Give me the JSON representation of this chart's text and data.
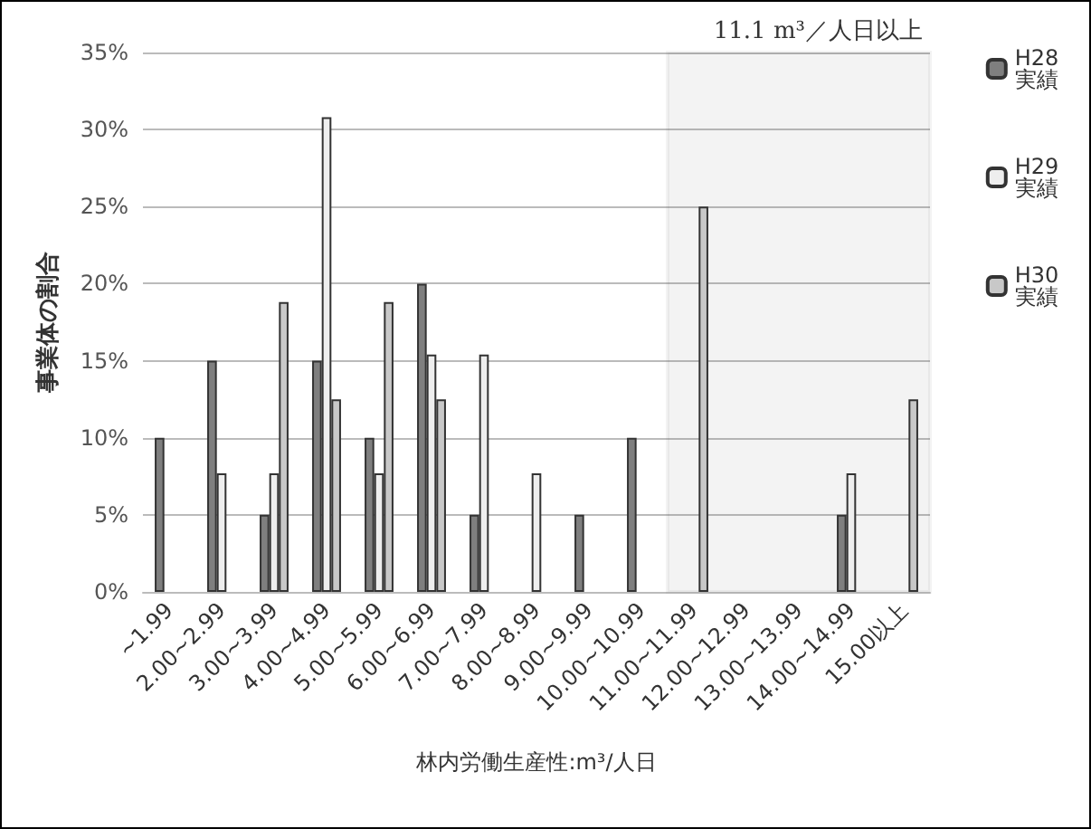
{
  "chart_data": {
    "type": "bar",
    "xlabel": "林内労働生産性:m³/人日",
    "ylabel": "事業体の割合",
    "categories": [
      "~1.99",
      "2.00~2.99",
      "3.00~3.99",
      "4.00~4.99",
      "5.00~5.99",
      "6.00~6.99",
      "7.00~7.99",
      "8.00~8.99",
      "9.00~9.99",
      "10.00~10.99",
      "11.00~11.99",
      "12.00~12.99",
      "13.00~13.99",
      "14.00~14.99",
      "15.00以上"
    ],
    "series": [
      {
        "name": "H28 実績",
        "color": "#7f7f7f",
        "values": [
          10,
          15,
          5,
          15,
          10,
          20,
          5,
          null,
          5,
          10,
          null,
          null,
          null,
          5,
          null
        ]
      },
      {
        "name": "H29 実績",
        "color": "#eeeeee",
        "values": [
          null,
          7.7,
          7.7,
          30.8,
          7.7,
          15.4,
          15.4,
          7.7,
          null,
          null,
          null,
          null,
          null,
          7.7,
          null
        ]
      },
      {
        "name": "H30 実績",
        "color": "#c8c8c8",
        "values": [
          null,
          null,
          18.8,
          12.5,
          18.8,
          12.5,
          null,
          null,
          null,
          null,
          25,
          null,
          null,
          null,
          12.5
        ]
      }
    ],
    "ylim": [
      0,
      35
    ],
    "yticks": [
      {
        "value": 0,
        "label": "0%"
      },
      {
        "value": 5,
        "label": "5%"
      },
      {
        "value": 10,
        "label": "10%"
      },
      {
        "value": 15,
        "label": "15%"
      },
      {
        "value": 20,
        "label": "20%"
      },
      {
        "value": 25,
        "label": "25%"
      },
      {
        "value": 30,
        "label": "30%"
      },
      {
        "value": 35,
        "label": "35%"
      }
    ],
    "bands": [
      {
        "axis": "x",
        "from": "11.00~11.99",
        "to": "15.00以上",
        "label": "11.1 m³／人日以上",
        "color": "#666666"
      }
    ],
    "grid": "y",
    "legend": "right"
  }
}
